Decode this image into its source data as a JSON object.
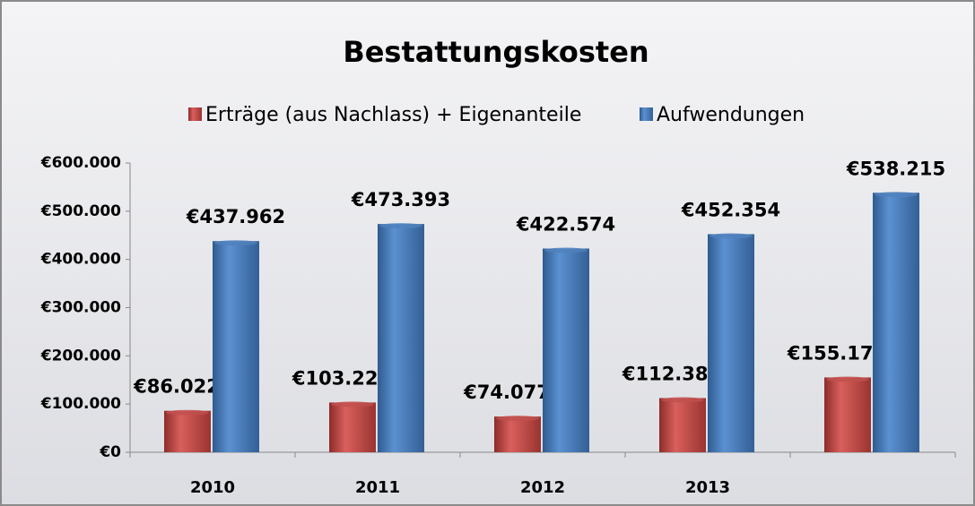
{
  "chart_data": {
    "type": "bar",
    "title": "Bestattungskosten",
    "categories": [
      "2010",
      "2011",
      "2012",
      "2013",
      null
    ],
    "series": [
      {
        "name": "Erträge (aus Nachlass) + Eigenanteile",
        "color": "#c0504d",
        "values": [
          86022,
          103228,
          74077,
          112380,
          155174
        ],
        "value_labels": [
          "€86.022",
          "€103.228",
          "€74.077",
          "€112.380",
          "€155.174"
        ]
      },
      {
        "name": "Aufwendungen",
        "color": "#4f81bd",
        "values": [
          437962,
          473393,
          422574,
          452354,
          538215
        ],
        "value_labels": [
          "€437.962",
          "€473.393",
          "€422.574",
          "€452.354",
          "€538.215"
        ]
      }
    ],
    "ylim": [
      0,
      600000
    ],
    "yticks": [
      {
        "value": 0,
        "label": "€0"
      },
      {
        "value": 100000,
        "label": "€100.000"
      },
      {
        "value": 200000,
        "label": "€200.000"
      },
      {
        "value": 300000,
        "label": "€300.000"
      },
      {
        "value": 400000,
        "label": "€400.000"
      },
      {
        "value": 500000,
        "label": "€500.000"
      },
      {
        "value": 600000,
        "label": "€600.000"
      }
    ],
    "legend": "top",
    "grid": false
  }
}
